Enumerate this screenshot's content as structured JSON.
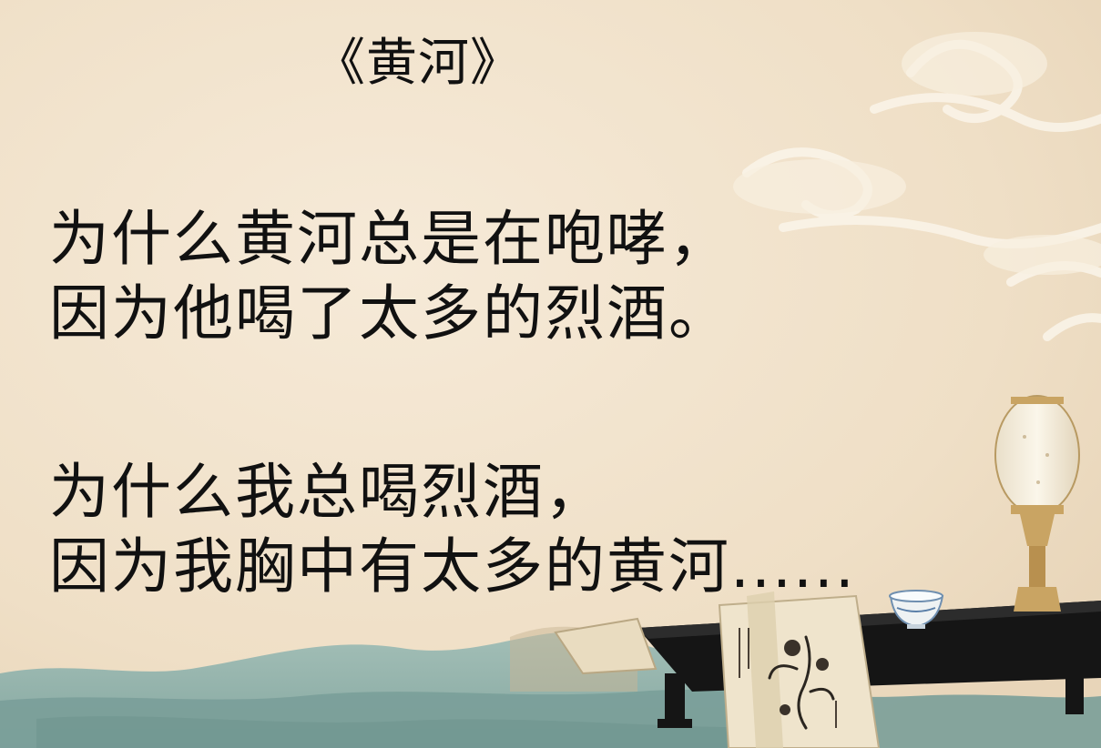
{
  "poem": {
    "title": "《黄河》",
    "stanzas": [
      {
        "lines": [
          "为什么黄河总是在咆哮，",
          "因为他喝了太多的烈酒。"
        ]
      },
      {
        "lines": [
          "为什么我总喝烈酒，",
          "因为我胸中有太多的黄河......"
        ]
      }
    ]
  },
  "colors": {
    "paper": "#f2e4cf",
    "text": "#111111",
    "mountain_teal": "#8fb2ad",
    "table_black": "#151515",
    "lamp_gold": "#c9a463"
  },
  "decorations": {
    "clouds": "cloud-swirl-illustration",
    "mountains": "misty-mountains-illustration",
    "table": "black-lacquer-table-illustration",
    "lamp": "palace-lamp-illustration",
    "scrolls": "painted-scrolls-illustration",
    "teacup": "porcelain-teacup-illustration"
  }
}
